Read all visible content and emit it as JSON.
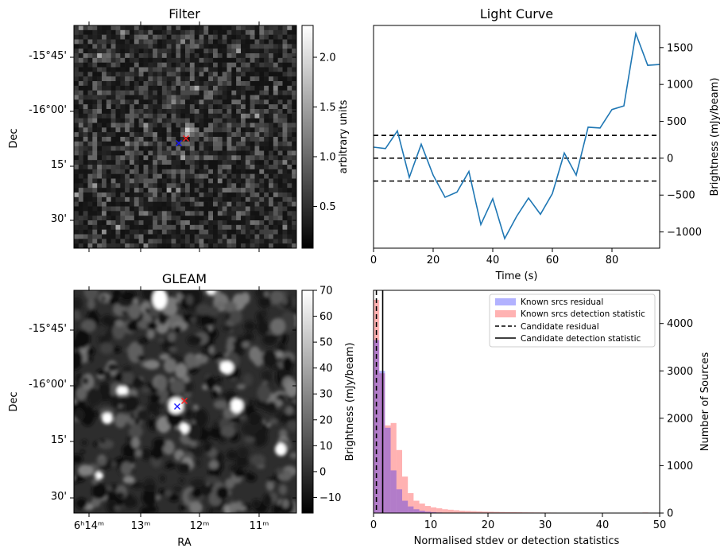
{
  "chart_data": [
    {
      "type": "heatmap",
      "title": "Filter",
      "xlabel": "",
      "ylabel": "Dec",
      "y_ticks": [
        "-15°45'",
        "-16°00'",
        "15'",
        "30'"
      ],
      "colorbar": {
        "label": "arbitrary units",
        "range": [
          0.08,
          2.32
        ],
        "ticks": [
          "0.5",
          "1.0",
          "1.5",
          "2.0"
        ],
        "colormap": "gray"
      },
      "markers": [
        {
          "symbol": "x",
          "color": "#1515ff"
        },
        {
          "symbol": "x",
          "color": "#ff1a1a"
        }
      ]
    },
    {
      "type": "line",
      "title": "Light Curve",
      "xlabel": "Time (s)",
      "ylabel": "Brightness (mJy/beam)",
      "xlim": [
        0,
        96
      ],
      "ylim": [
        -1220,
        1800
      ],
      "x_ticks": [
        0,
        20,
        40,
        60,
        80
      ],
      "y_ticks": [
        -1000,
        -500,
        0,
        500,
        1000,
        1500
      ],
      "series": [
        {
          "color": "#1f77b4",
          "x": [
            0,
            4,
            8,
            12,
            16,
            20,
            24,
            28,
            32,
            36,
            40,
            44,
            48,
            52,
            56,
            60,
            64,
            68,
            72,
            76,
            80,
            84,
            88,
            92,
            96
          ],
          "y": [
            150,
            130,
            370,
            -260,
            190,
            -230,
            -530,
            -460,
            -180,
            -900,
            -550,
            -1090,
            -790,
            -540,
            -760,
            -480,
            70,
            -230,
            420,
            410,
            660,
            710,
            1690,
            1260,
            1270
          ]
        }
      ],
      "hlines": [
        {
          "y": 310,
          "style": "dashed",
          "color": "#000000"
        },
        {
          "y": 0,
          "style": "dashed",
          "color": "#000000"
        },
        {
          "y": -310,
          "style": "dashed",
          "color": "#000000"
        }
      ]
    },
    {
      "type": "heatmap",
      "title": "GLEAM",
      "xlabel": "RA",
      "ylabel": "Dec",
      "x_ticks": [
        "6ʰ14ᵐ",
        "13ᵐ",
        "12ᵐ",
        "11ᵐ"
      ],
      "y_ticks": [
        "-15°45'",
        "-16°00'",
        "15'",
        "30'"
      ],
      "colorbar": {
        "label": "Brightness (mJy/beam)",
        "range": [
          -16,
          70
        ],
        "ticks": [
          "−10",
          "0",
          "10",
          "20",
          "30",
          "40",
          "50",
          "60",
          "70"
        ],
        "colormap": "gray"
      },
      "markers": [
        {
          "symbol": "x",
          "color": "#1515ff"
        },
        {
          "symbol": "x",
          "color": "#ff1a1a"
        }
      ]
    },
    {
      "type": "bar",
      "title": "",
      "xlabel": "Normalised stdev or detection statistics",
      "ylabel": "Number of Sources",
      "xlim": [
        0,
        50
      ],
      "ylim": [
        0,
        4700
      ],
      "x_ticks": [
        0,
        10,
        20,
        30,
        40,
        50
      ],
      "y_ticks": [
        0,
        1000,
        2000,
        3000,
        4000
      ],
      "bin_width": 1,
      "series": [
        {
          "name": "Known srcs residual",
          "color": "#0000ff",
          "alpha": 0.3,
          "bin_starts": [
            0,
            1,
            2,
            3,
            4,
            5,
            6,
            7,
            8,
            9,
            10,
            11,
            12
          ],
          "counts": [
            3650,
            3000,
            1800,
            900,
            500,
            260,
            140,
            80,
            50,
            30,
            20,
            12,
            8
          ]
        },
        {
          "name": "Known srcs detection statistic",
          "color": "#ff0000",
          "alpha": 0.3,
          "bin_starts": [
            0,
            1,
            2,
            3,
            4,
            5,
            6,
            7,
            8,
            9,
            10,
            11,
            12,
            13,
            14,
            15,
            16,
            17,
            18,
            19,
            20,
            21,
            22,
            23,
            24,
            25,
            26,
            27,
            28,
            29,
            30,
            31,
            32,
            33,
            34,
            35,
            36,
            37,
            38,
            39,
            40,
            41,
            42,
            43,
            44,
            45,
            46,
            47,
            48,
            49
          ],
          "counts": [
            4500,
            2950,
            1850,
            1900,
            1330,
            770,
            420,
            260,
            200,
            150,
            120,
            100,
            80,
            70,
            60,
            50,
            45,
            40,
            35,
            30,
            28,
            25,
            22,
            20,
            18,
            16,
            14,
            13,
            12,
            11,
            10,
            9,
            8,
            8,
            7,
            7,
            6,
            6,
            5,
            5,
            5,
            4,
            4,
            4,
            3,
            3,
            3,
            12,
            3,
            2
          ]
        }
      ],
      "vlines": [
        {
          "name": "Candidate residual",
          "x": 0.5,
          "style": "dashed",
          "color": "#000000"
        },
        {
          "name": "Candidate detection statistic",
          "x": 1.6,
          "style": "solid",
          "color": "#000000"
        }
      ],
      "legend_position": "upper-right"
    }
  ]
}
